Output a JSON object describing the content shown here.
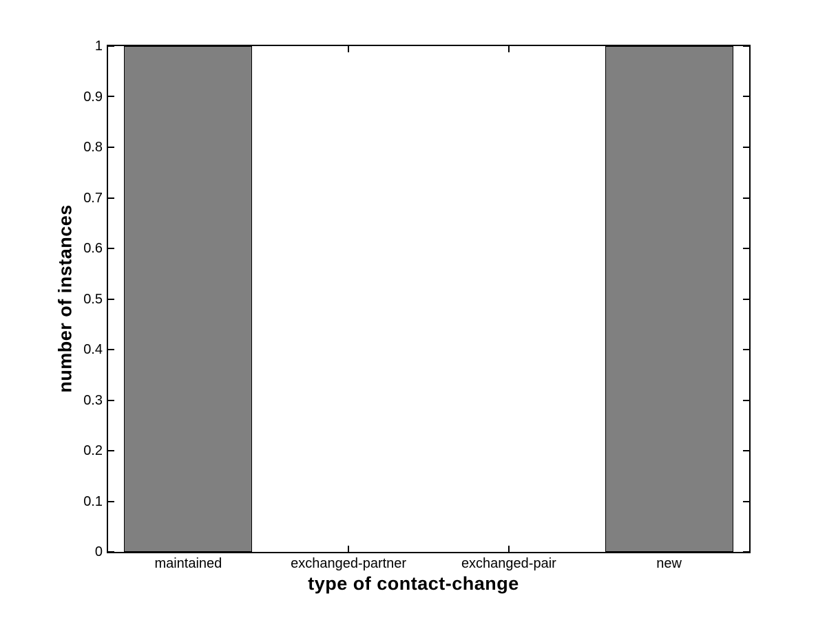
{
  "figure": {
    "background_color": "#ffffff",
    "axes_line_color": "#000000",
    "text_color": "#000000"
  },
  "chart_data": {
    "type": "bar",
    "title": "",
    "xlabel": "type of contact-change",
    "ylabel": "number of instances",
    "categories": [
      "maintained",
      "exchanged-partner",
      "exchanged-pair",
      "new"
    ],
    "values": [
      1,
      0,
      0,
      1
    ],
    "ylim": [
      0,
      1
    ],
    "y_ticks": [
      0,
      0.1,
      0.2,
      0.3,
      0.4,
      0.5,
      0.6,
      0.7,
      0.8,
      0.9,
      1
    ],
    "y_tick_labels": [
      "0",
      "0.1",
      "0.2",
      "0.3",
      "0.4",
      "0.5",
      "0.6",
      "0.7",
      "0.8",
      "0.9",
      "1"
    ],
    "bar_color": "#808080",
    "bar_edge_color": "#000000",
    "bar_width_fraction": 0.8,
    "grid": false,
    "box": true,
    "legend_position": "none"
  }
}
